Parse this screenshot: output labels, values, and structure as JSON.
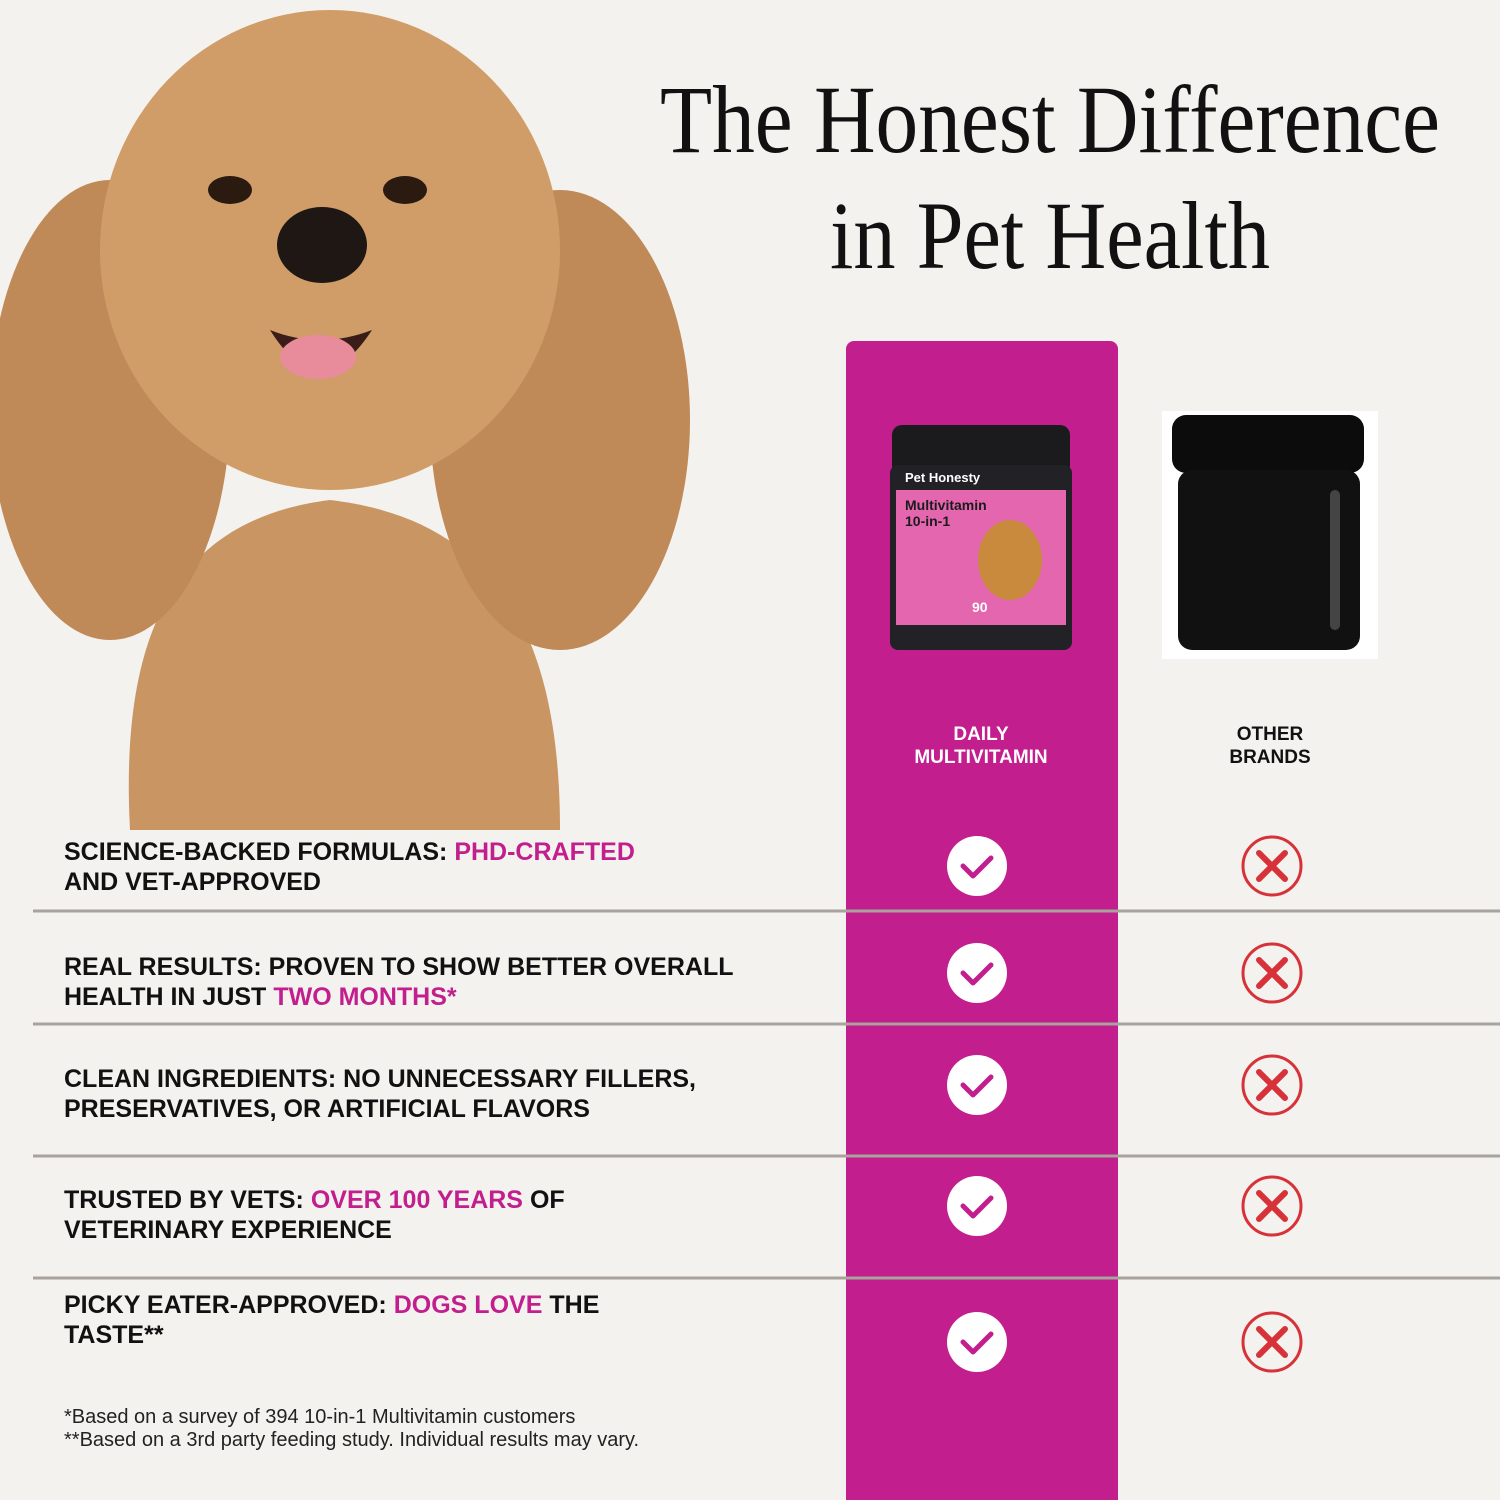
{
  "header": {
    "title_lines": [
      "The Honest Difference",
      "in Pet Health"
    ]
  },
  "product": {
    "brand": "Pet Honesty",
    "name": "Multivitamin",
    "variant": "10-in-1",
    "count": "90"
  },
  "columns": [
    [
      "DAILY",
      "MULTIVITAMIN"
    ],
    [
      "OTHER",
      "BRANDS"
    ]
  ],
  "rows": [
    {
      "lines": [
        [
          {
            "text": "SCIENCE-BACKED FORMULAS:"
          },
          {
            "text": "PHD-CRAFTED",
            "accent": true
          }
        ],
        [
          {
            "text": "AND VET-APPROVED"
          }
        ]
      ]
    },
    {
      "lines": [
        [
          {
            "text": "REAL RESULTS: PROVEN TO SHOW BETTER OVERALL"
          }
        ],
        [
          {
            "text": "HEALTH IN JUST"
          },
          {
            "text": "TWO MONTHS*",
            "accent": true
          }
        ]
      ]
    },
    {
      "lines": [
        [
          {
            "text": "CLEAN INGREDIENTS: NO UNNECESSARY FILLERS,"
          }
        ],
        [
          {
            "text": "PRESERVATIVES, OR ARTIFICIAL FLAVORS"
          }
        ]
      ]
    },
    {
      "lines": [
        [
          {
            "text": "TRUSTED BY VETS:"
          },
          {
            "text": "OVER 100 YEARS",
            "accent": true
          },
          {
            "text": "OF"
          }
        ],
        [
          {
            "text": "VETERINARY EXPERIENCE"
          }
        ]
      ]
    },
    {
      "lines": [
        [
          {
            "text": "PICKY EATER-APPROVED:"
          },
          {
            "text": "DOGS LOVE",
            "accent": true
          },
          {
            "text": "THE"
          }
        ],
        [
          {
            "text": "TASTE**"
          }
        ]
      ]
    }
  ],
  "footnotes": [
    "*Based on a survey of 394 10-in-1 Multivitamin customers",
    "**Based on a 3rd party feeding study. Individual results may vary."
  ]
}
